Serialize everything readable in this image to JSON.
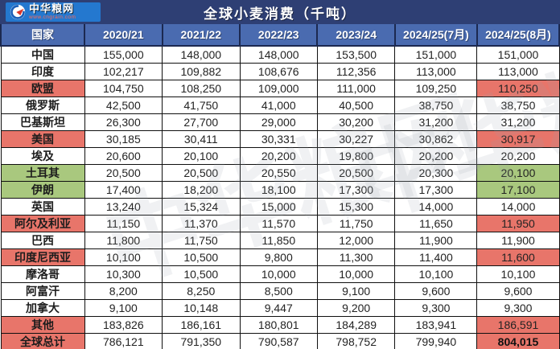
{
  "header": {
    "logo_brand": "中华粮网",
    "logo_site": "www.cngrain.com",
    "title": "全球小麦消费（千吨）"
  },
  "chart_data": {
    "type": "table",
    "title": "全球小麦消费（千吨）",
    "unit": "千吨",
    "columns": [
      "国家",
      "2020/21",
      "2021/22",
      "2022/23",
      "2023/24",
      "2024/25(7月)",
      "2024/25(8月)"
    ],
    "rows": [
      {
        "name": "中国",
        "values": [
          "155,000",
          "148,000",
          "148,000",
          "153,500",
          "151,000",
          "151,000"
        ],
        "highlight": "none"
      },
      {
        "name": "印度",
        "values": [
          "102,217",
          "109,882",
          "108,676",
          "112,356",
          "113,000",
          "113,000"
        ],
        "highlight": "none"
      },
      {
        "name": "欧盟",
        "values": [
          "104,750",
          "108,250",
          "109,000",
          "111,000",
          "109,250",
          "110,250"
        ],
        "highlight": "red"
      },
      {
        "name": "俄罗斯",
        "values": [
          "42,500",
          "41,750",
          "41,000",
          "40,500",
          "38,750",
          "38,750"
        ],
        "highlight": "none"
      },
      {
        "name": "巴基斯坦",
        "values": [
          "26,300",
          "27,700",
          "29,000",
          "30,200",
          "31,200",
          "31,200"
        ],
        "highlight": "none"
      },
      {
        "name": "美国",
        "values": [
          "30,185",
          "30,411",
          "30,331",
          "30,227",
          "30,862",
          "30,917"
        ],
        "highlight": "red"
      },
      {
        "name": "埃及",
        "values": [
          "20,600",
          "20,100",
          "20,200",
          "19,800",
          "20,200",
          "20,200"
        ],
        "highlight": "none"
      },
      {
        "name": "土耳其",
        "values": [
          "20,500",
          "20,500",
          "20,550",
          "20,500",
          "20,300",
          "20,100"
        ],
        "highlight": "green"
      },
      {
        "name": "伊朗",
        "values": [
          "17,400",
          "18,200",
          "18,100",
          "17,300",
          "17,300",
          "17,100"
        ],
        "highlight": "green"
      },
      {
        "name": "英国",
        "values": [
          "13,240",
          "15,324",
          "15,000",
          "15,300",
          "14,000",
          "14,000"
        ],
        "highlight": "none"
      },
      {
        "name": "阿尔及利亚",
        "values": [
          "11,150",
          "11,370",
          "11,570",
          "11,750",
          "11,650",
          "11,950"
        ],
        "highlight": "red"
      },
      {
        "name": "巴西",
        "values": [
          "11,800",
          "11,750",
          "11,850",
          "12,000",
          "11,900",
          "11,900"
        ],
        "highlight": "none"
      },
      {
        "name": "印度尼西亚",
        "values": [
          "10,100",
          "10,500",
          "9,800",
          "11,300",
          "11,400",
          "11,600"
        ],
        "highlight": "red"
      },
      {
        "name": "摩洛哥",
        "values": [
          "10,300",
          "10,500",
          "10,000",
          "10,000",
          "10,100",
          "10,100"
        ],
        "highlight": "none"
      },
      {
        "name": "阿富汗",
        "values": [
          "8,200",
          "8,250",
          "8,500",
          "9,100",
          "9,600",
          "9,600"
        ],
        "highlight": "none"
      },
      {
        "name": "加拿大",
        "values": [
          "9,100",
          "10,148",
          "9,447",
          "9,200",
          "9,300",
          "9,300"
        ],
        "highlight": "none"
      },
      {
        "name": "其他",
        "values": [
          "183,826",
          "186,161",
          "180,801",
          "184,289",
          "183,941",
          "186,591"
        ],
        "highlight": "red"
      },
      {
        "name": "全球总计",
        "values": [
          "786,121",
          "791,350",
          "790,587",
          "798,752",
          "799,940",
          "804,015"
        ],
        "highlight": "red",
        "total": true
      }
    ]
  },
  "watermark_text": "中华粮网",
  "colors": {
    "title_bar": "#2e3f74",
    "header_row": "#4a6bb0",
    "logo_bg": "#2478cf",
    "highlight_red": "#e8756a",
    "highlight_green": "#a9c87e"
  }
}
